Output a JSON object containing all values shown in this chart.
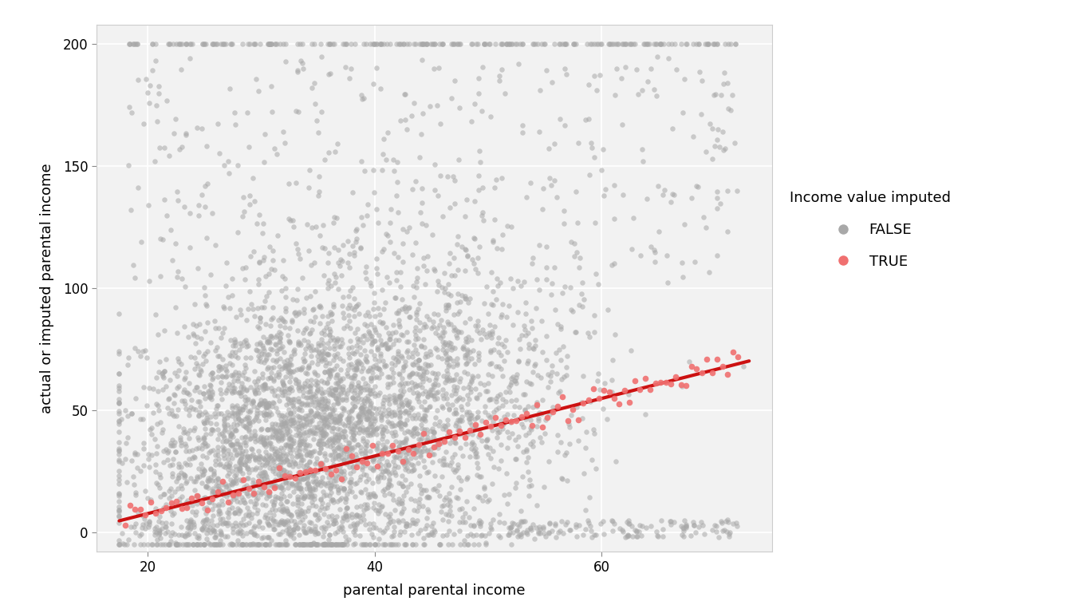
{
  "title": "",
  "xlabel": "parental parental income",
  "ylabel": "actual or imputed parental income",
  "legend_title": "Income value imputed",
  "legend_labels": [
    "FALSE",
    "TRUE"
  ],
  "xlim": [
    15.5,
    75
  ],
  "ylim": [
    -8,
    208
  ],
  "xticks": [
    20,
    40,
    60
  ],
  "yticks": [
    0,
    50,
    100,
    150,
    200
  ],
  "gray_color": "#a8a8a8",
  "red_color": "#f07070",
  "background_color": "#f2f2f2",
  "grid_color": "#ffffff",
  "point_size_gray": 22,
  "point_size_red": 30,
  "point_alpha_gray": 0.55,
  "point_alpha_red": 0.9,
  "line_color": "#cc1111",
  "line_width": 3.0,
  "n_gray": 5000,
  "seed": 42,
  "red_x_start": 18,
  "red_x_end": 72,
  "red_n": 120,
  "reg_intercept": -16,
  "reg_slope": 1.18
}
